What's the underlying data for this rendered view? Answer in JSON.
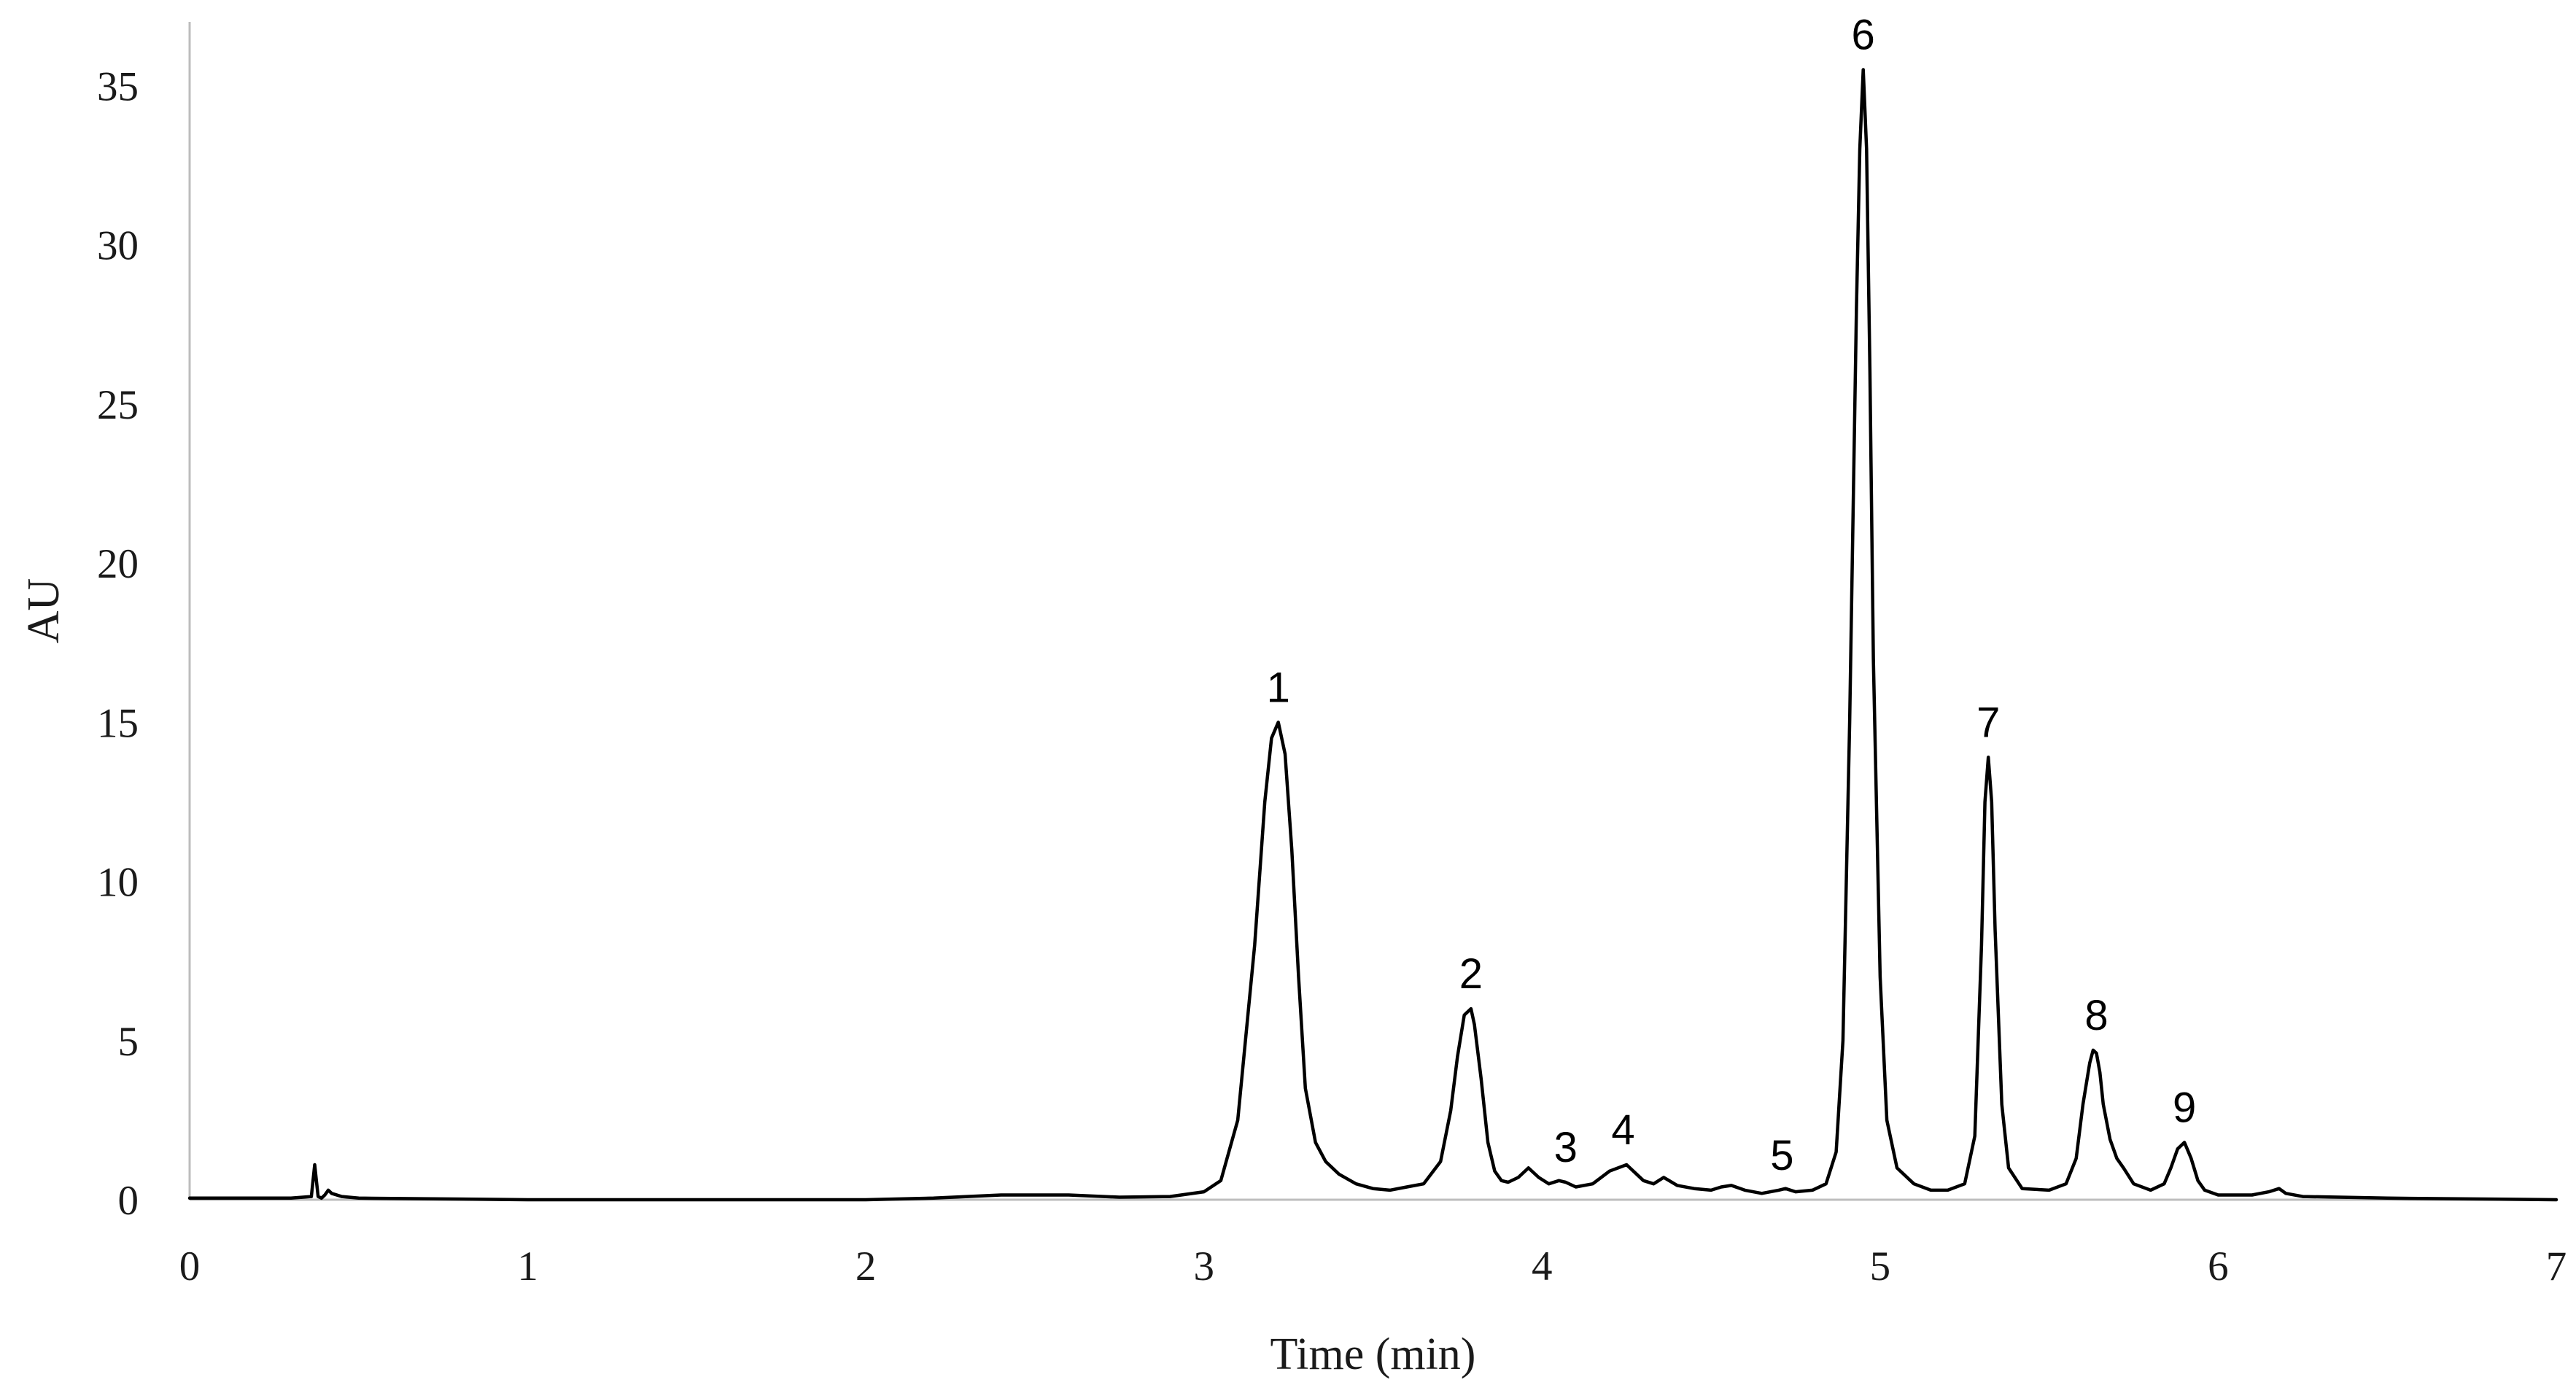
{
  "chart_data": {
    "type": "line",
    "title": "",
    "xlabel": "Time (min)",
    "ylabel": "AU",
    "xlim": [
      0,
      7
    ],
    "ylim": [
      0,
      37
    ],
    "x_ticks": [
      0,
      1,
      2,
      3,
      4,
      5,
      6,
      7
    ],
    "y_ticks": [
      0,
      5,
      10,
      15,
      20,
      25,
      30,
      35
    ],
    "grid": false,
    "legend": "none",
    "line_color": "#000000",
    "series": [
      {
        "x": [
          0,
          0.3,
          0.36,
          0.365,
          0.37,
          0.375,
          0.38,
          0.39,
          0.4,
          0.41,
          0.42,
          0.45,
          0.5,
          1.0,
          1.5,
          2.0,
          2.2,
          2.4,
          2.6,
          2.75,
          2.9,
          3.0,
          3.05,
          3.1,
          3.15,
          3.18,
          3.2,
          3.22,
          3.24,
          3.26,
          3.28,
          3.3,
          3.33,
          3.36,
          3.4,
          3.45,
          3.5,
          3.55,
          3.6,
          3.65,
          3.7,
          3.73,
          3.75,
          3.77,
          3.79,
          3.8,
          3.82,
          3.84,
          3.86,
          3.88,
          3.9,
          3.93,
          3.96,
          3.99,
          4.02,
          4.05,
          4.07,
          4.1,
          4.15,
          4.2,
          4.25,
          4.3,
          4.33,
          4.36,
          4.4,
          4.45,
          4.5,
          4.53,
          4.56,
          4.6,
          4.65,
          4.7,
          4.72,
          4.75,
          4.8,
          4.84,
          4.87,
          4.89,
          4.91,
          4.93,
          4.94,
          4.95,
          4.96,
          4.97,
          4.98,
          5.0,
          5.02,
          5.05,
          5.1,
          5.15,
          5.2,
          5.25,
          5.28,
          5.3,
          5.31,
          5.32,
          5.33,
          5.34,
          5.36,
          5.38,
          5.42,
          5.5,
          5.55,
          5.58,
          5.6,
          5.62,
          5.63,
          5.64,
          5.65,
          5.66,
          5.68,
          5.7,
          5.72,
          5.75,
          5.8,
          5.84,
          5.86,
          5.88,
          5.9,
          5.92,
          5.94,
          5.96,
          6.0,
          6.1,
          6.15,
          6.18,
          6.2,
          6.25,
          6.5,
          7.0
        ],
        "values": [
          0.05,
          0.05,
          0.1,
          0.6,
          1.1,
          0.6,
          0.1,
          0.05,
          0.15,
          0.3,
          0.2,
          0.1,
          0.05,
          0.0,
          0.0,
          0.0,
          0.05,
          0.15,
          0.15,
          0.08,
          0.1,
          0.25,
          0.6,
          2.5,
          8.0,
          12.5,
          14.5,
          15.0,
          14.0,
          11.0,
          7.0,
          3.5,
          1.8,
          1.2,
          0.8,
          0.5,
          0.35,
          0.3,
          0.4,
          0.5,
          1.2,
          2.8,
          4.5,
          5.8,
          6.0,
          5.5,
          3.8,
          1.8,
          0.9,
          0.6,
          0.55,
          0.7,
          1.0,
          0.7,
          0.5,
          0.6,
          0.55,
          0.4,
          0.5,
          0.9,
          1.1,
          0.6,
          0.5,
          0.7,
          0.45,
          0.35,
          0.3,
          0.4,
          0.45,
          0.3,
          0.2,
          0.3,
          0.35,
          0.25,
          0.3,
          0.5,
          1.5,
          5.0,
          15.0,
          28.0,
          33.0,
          35.5,
          33.0,
          26.0,
          17.0,
          7.0,
          2.5,
          1.0,
          0.5,
          0.3,
          0.3,
          0.5,
          2.0,
          8.0,
          12.5,
          13.9,
          12.5,
          8.5,
          3.0,
          1.0,
          0.35,
          0.3,
          0.5,
          1.3,
          3.0,
          4.3,
          4.7,
          4.6,
          4.0,
          3.0,
          1.9,
          1.3,
          1.0,
          0.5,
          0.3,
          0.5,
          1.0,
          1.6,
          1.8,
          1.3,
          0.6,
          0.3,
          0.15,
          0.15,
          0.25,
          0.35,
          0.2,
          0.1,
          0.05,
          0.0
        ]
      }
    ],
    "annotations": [
      {
        "label": "1",
        "x": 3.22,
        "y": 15.0
      },
      {
        "label": "2",
        "x": 3.79,
        "y": 6.0
      },
      {
        "label": "3",
        "x": 4.07,
        "y": 0.55
      },
      {
        "label": "4",
        "x": 4.24,
        "y": 1.1
      },
      {
        "label": "5",
        "x": 4.71,
        "y": 0.3
      },
      {
        "label": "6",
        "x": 4.95,
        "y": 35.5
      },
      {
        "label": "7",
        "x": 5.32,
        "y": 13.9
      },
      {
        "label": "8",
        "x": 5.64,
        "y": 4.7
      },
      {
        "label": "9",
        "x": 5.9,
        "y": 1.8
      }
    ]
  }
}
